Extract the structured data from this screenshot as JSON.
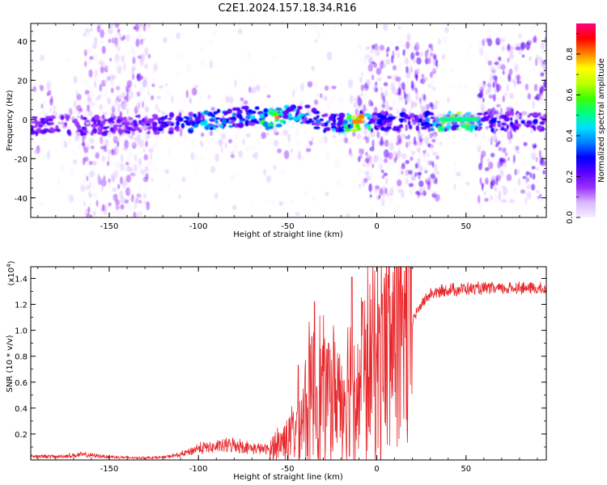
{
  "title": "C2E1.2024.157.18.34.R16",
  "chart_data": [
    {
      "type": "heatmap",
      "xlabel": "Height of straight line (km)",
      "ylabel": "Frequency (Hz)",
      "xlim": [
        -194,
        95
      ],
      "ylim": [
        -50,
        49
      ],
      "x_ticks": [
        -150,
        -100,
        -50,
        0,
        50
      ],
      "y_ticks": [
        -40,
        -20,
        0,
        20,
        40
      ],
      "colorbar": {
        "label": "Normalized spectral amplitude",
        "range": [
          0.0,
          0.95
        ],
        "ticks": [
          0.0,
          0.2,
          0.4,
          0.6,
          0.8
        ],
        "colors": [
          "#f5f0ff",
          "#d8b8ff",
          "#9b30ff",
          "#5a00ff",
          "#0000ff",
          "#0080ff",
          "#00e0ff",
          "#00ff80",
          "#40ff00",
          "#c0ff00",
          "#ffff00",
          "#ff8000",
          "#ff0000",
          "#ff0080"
        ]
      },
      "ridge": {
        "x": [
          -194,
          -150,
          -110,
          -90,
          -70,
          -60,
          -50,
          -40,
          -30,
          -20,
          -10,
          0,
          10,
          20,
          30,
          35,
          50,
          60,
          70,
          80,
          95
        ],
        "y": [
          -3,
          -3,
          -2,
          0,
          2,
          0,
          2,
          3,
          -2,
          -2,
          -1,
          -1,
          -1,
          -1,
          -1,
          -1,
          -1,
          -1,
          -1,
          -1,
          -1
        ],
        "level": [
          0.3,
          0.25,
          0.35,
          0.5,
          0.45,
          0.7,
          0.5,
          0.45,
          0.4,
          0.45,
          0.9,
          0.35,
          0.35,
          0.35,
          0.4,
          0.6,
          0.65,
          0.35,
          0.3,
          0.3,
          0.3
        ]
      }
    },
    {
      "type": "line",
      "xlabel": "Height of straight line (km)",
      "ylabel": "SNR (10 * v/v)",
      "y_multiplier": "(x10",
      "y_multiplier_exp": "4",
      "y_multiplier_close": ")",
      "xlim": [
        -194,
        95
      ],
      "ylim": [
        0,
        14900
      ],
      "x_ticks": [
        -150,
        -100,
        -50,
        0,
        50
      ],
      "y_ticks": [
        2000,
        4000,
        6000,
        8000,
        10000,
        12000,
        14000
      ],
      "y_tick_labels": [
        "0.2",
        "0.4",
        "0.6",
        "0.8",
        "1.0",
        "1.2",
        "1.4"
      ],
      "series": [
        {
          "color": "#e8262a",
          "x": [
            -194,
            -180,
            -165,
            -150,
            -135,
            -120,
            -110,
            -100,
            -90,
            -80,
            -70,
            -60,
            -55,
            -50,
            -45,
            -40,
            -35,
            -30,
            -25,
            -20,
            -15,
            -10,
            -5,
            0,
            5,
            10,
            15,
            20,
            25,
            30,
            40,
            50,
            60,
            70,
            80,
            90,
            95
          ],
          "y": [
            300,
            250,
            400,
            250,
            150,
            200,
            400,
            900,
            1000,
            1200,
            900,
            800,
            1300,
            1700,
            2600,
            4200,
            5500,
            5300,
            5100,
            5200,
            5800,
            5300,
            7200,
            8000,
            8600,
            9200,
            9500,
            10800,
            12000,
            12800,
            13100,
            13200,
            13200,
            13200,
            13300,
            13200,
            13100
          ],
          "spikes": [
            {
              "x": -44,
              "y": 7300
            },
            {
              "x": -35,
              "y": 12200
            },
            {
              "x": -27,
              "y": 9000
            },
            {
              "x": -14,
              "y": 14100
            },
            {
              "x": -8,
              "y": 12200
            },
            {
              "x": 3,
              "y": 12800
            },
            {
              "x": 11,
              "y": 14900
            },
            {
              "x": 14,
              "y": 8800
            }
          ]
        }
      ]
    }
  ]
}
